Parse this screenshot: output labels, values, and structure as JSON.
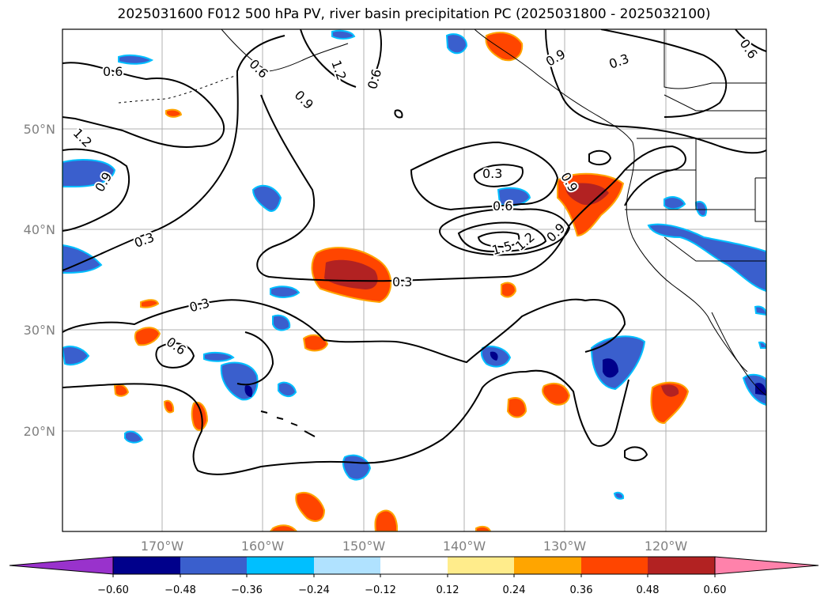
{
  "title": "2025031600 F012 500 hPa PV, river basin precipitation PC (2025031800 - 2025032100)",
  "lat_labels": [
    "50°N",
    "40°N",
    "30°N",
    "20°N"
  ],
  "lon_labels": [
    "170°W",
    "160°W",
    "150°W",
    "140°W",
    "130°W",
    "120°W"
  ],
  "colorbar": {
    "ticks": [
      "−0.60",
      "−0.48",
      "−0.36",
      "−0.24",
      "−0.12",
      "0.12",
      "0.24",
      "0.36",
      "0.48",
      "0.60"
    ],
    "colors": [
      "#9932cc",
      "#00008b",
      "#3a5fcd",
      "#00bfff",
      "#b0e2ff",
      "#ffffff",
      "#ffec8b",
      "#ffa500",
      "#ff4500",
      "#b22222",
      "#ff82ab"
    ]
  },
  "contour_labels": [
    "0.6",
    "1.2",
    "0.9",
    "0.3",
    "0.6",
    "0.9",
    "0.6",
    "1.2",
    "0.9",
    "0.6",
    "0.3",
    "0.9",
    "0.3",
    "0.6",
    "1.5",
    "1.2",
    "0.9",
    "0.9",
    "0.3",
    "0.3",
    "0.6"
  ],
  "colors": {
    "positive_core": "#b22222",
    "positive": "#ff4500",
    "positive_edge": "#ffa500",
    "negative_core": "#00008b",
    "negative": "#3a5fcd",
    "negative_edge": "#00bfff"
  }
}
